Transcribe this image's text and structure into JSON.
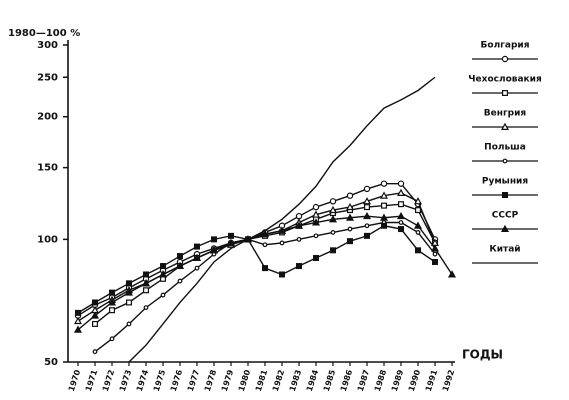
{
  "chart_data": {
    "type": "line",
    "y_label": "1980—100 %",
    "x_label": "ГОДЫ",
    "categories": [
      "1970",
      "1971",
      "1972",
      "1973",
      "1974",
      "1975",
      "1976",
      "1977",
      "1978",
      "1979",
      "1980",
      "1981",
      "1982",
      "1983",
      "1984",
      "1985",
      "1986",
      "1987",
      "1988",
      "1989",
      "1990",
      "1991",
      "1992"
    ],
    "ylim": [
      50,
      300
    ],
    "log_scale": true,
    "yticks": [
      50,
      100,
      150,
      200,
      250,
      300
    ],
    "grid": false,
    "legend": "right",
    "series": [
      {
        "name": "Болгария",
        "color": "#111111",
        "marker": "circle",
        "values": [
          65,
          69,
          72,
          76,
          80,
          84,
          88,
          92,
          95,
          98,
          100,
          104,
          108,
          114,
          120,
          124,
          128,
          133,
          137,
          137,
          122,
          100,
          null
        ]
      },
      {
        "name": "Чехословакия",
        "color": "#111111",
        "marker": "square",
        "values": [
          null,
          62,
          67,
          70,
          75,
          80,
          86,
          90,
          94,
          97,
          100,
          102,
          104,
          108,
          112,
          116,
          118,
          120,
          121,
          122,
          118,
          98,
          null
        ]
      },
      {
        "name": "Венгрия",
        "color": "#111111",
        "marker": "triangle",
        "values": [
          63,
          67,
          71,
          75,
          78,
          82,
          86,
          90,
          94,
          97,
          100,
          103,
          105,
          110,
          115,
          118,
          120,
          124,
          128,
          130,
          124,
          98,
          null
        ]
      },
      {
        "name": "Польша",
        "color": "#111111",
        "marker": "dot",
        "values": [
          null,
          53,
          57,
          62,
          68,
          73,
          79,
          85,
          92,
          98,
          100,
          97,
          98,
          100,
          102,
          104,
          106,
          108,
          110,
          110,
          104,
          92,
          null
        ]
      },
      {
        "name": "Румыния",
        "color": "#111111",
        "marker": "filled-square",
        "values": [
          66,
          70,
          74,
          78,
          82,
          86,
          91,
          96,
          100,
          102,
          100,
          85,
          82,
          86,
          90,
          94,
          99,
          102,
          108,
          106,
          94,
          88,
          null
        ]
      },
      {
        "name": "СССР",
        "color": "#111111",
        "marker": "filled-triangle",
        "values": [
          60,
          65,
          70,
          74,
          78,
          82,
          86,
          90,
          94,
          98,
          100,
          103,
          105,
          108,
          110,
          112,
          113,
          114,
          113,
          114,
          108,
          95,
          82
        ]
      },
      {
        "name": "Китай",
        "color": "#111111",
        "values": [
          null,
          null,
          null,
          50,
          55,
          62,
          70,
          78,
          88,
          95,
          100,
          105,
          112,
          122,
          135,
          155,
          170,
          190,
          210,
          220,
          232,
          250,
          null
        ]
      }
    ]
  }
}
